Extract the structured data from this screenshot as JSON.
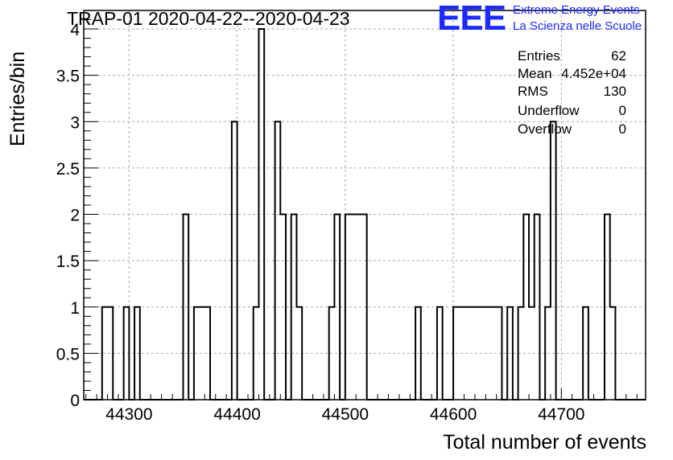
{
  "header": {
    "title": "TRAP-01 2020-04-22--2020-04-23"
  },
  "logo": {
    "mark": "EEE",
    "line1": "Extreme Energy Events",
    "line2": "La Scienza nelle Scuole",
    "color": "#1c2bff"
  },
  "stats": {
    "entries_label": "Entries",
    "entries_value": "62",
    "mean_label": "Mean",
    "mean_value": "4.452e+04",
    "rms_label": "RMS",
    "rms_value": "130",
    "underflow_label": "Underflow",
    "underflow_value": "0",
    "overflow_label": "Overflow",
    "overflow_value": "0"
  },
  "chart_data": {
    "type": "bar",
    "xlabel": "Total number of events",
    "ylabel": "Entries/bin",
    "xlim": [
      44258,
      44778
    ],
    "ylim": [
      0,
      4.2
    ],
    "grid": true,
    "bin_width": 5,
    "x_ticks": [
      "44300",
      "44400",
      "44500",
      "44600",
      "44700"
    ],
    "y_ticks": [
      "0",
      "0.5",
      "1",
      "1.5",
      "2",
      "2.5",
      "3",
      "3.5",
      "4"
    ],
    "bins": [
      {
        "x": 44275,
        "y": 1
      },
      {
        "x": 44280,
        "y": 1
      },
      {
        "x": 44295,
        "y": 1
      },
      {
        "x": 44305,
        "y": 1
      },
      {
        "x": 44350,
        "y": 2
      },
      {
        "x": 44360,
        "y": 1
      },
      {
        "x": 44365,
        "y": 1
      },
      {
        "x": 44370,
        "y": 1
      },
      {
        "x": 44395,
        "y": 3
      },
      {
        "x": 44415,
        "y": 1
      },
      {
        "x": 44420,
        "y": 4
      },
      {
        "x": 44435,
        "y": 3
      },
      {
        "x": 44440,
        "y": 2
      },
      {
        "x": 44450,
        "y": 2
      },
      {
        "x": 44455,
        "y": 1
      },
      {
        "x": 44485,
        "y": 1
      },
      {
        "x": 44490,
        "y": 2
      },
      {
        "x": 44500,
        "y": 2
      },
      {
        "x": 44505,
        "y": 2
      },
      {
        "x": 44510,
        "y": 2
      },
      {
        "x": 44515,
        "y": 2
      },
      {
        "x": 44565,
        "y": 1
      },
      {
        "x": 44585,
        "y": 1
      },
      {
        "x": 44600,
        "y": 1
      },
      {
        "x": 44605,
        "y": 1
      },
      {
        "x": 44610,
        "y": 1
      },
      {
        "x": 44615,
        "y": 1
      },
      {
        "x": 44620,
        "y": 1
      },
      {
        "x": 44625,
        "y": 1
      },
      {
        "x": 44630,
        "y": 1
      },
      {
        "x": 44635,
        "y": 1
      },
      {
        "x": 44640,
        "y": 1
      },
      {
        "x": 44650,
        "y": 1
      },
      {
        "x": 44660,
        "y": 1
      },
      {
        "x": 44665,
        "y": 2
      },
      {
        "x": 44670,
        "y": 1
      },
      {
        "x": 44675,
        "y": 2
      },
      {
        "x": 44685,
        "y": 1
      },
      {
        "x": 44690,
        "y": 3
      },
      {
        "x": 44720,
        "y": 1
      },
      {
        "x": 44740,
        "y": 2
      },
      {
        "x": 44745,
        "y": 1
      }
    ]
  }
}
